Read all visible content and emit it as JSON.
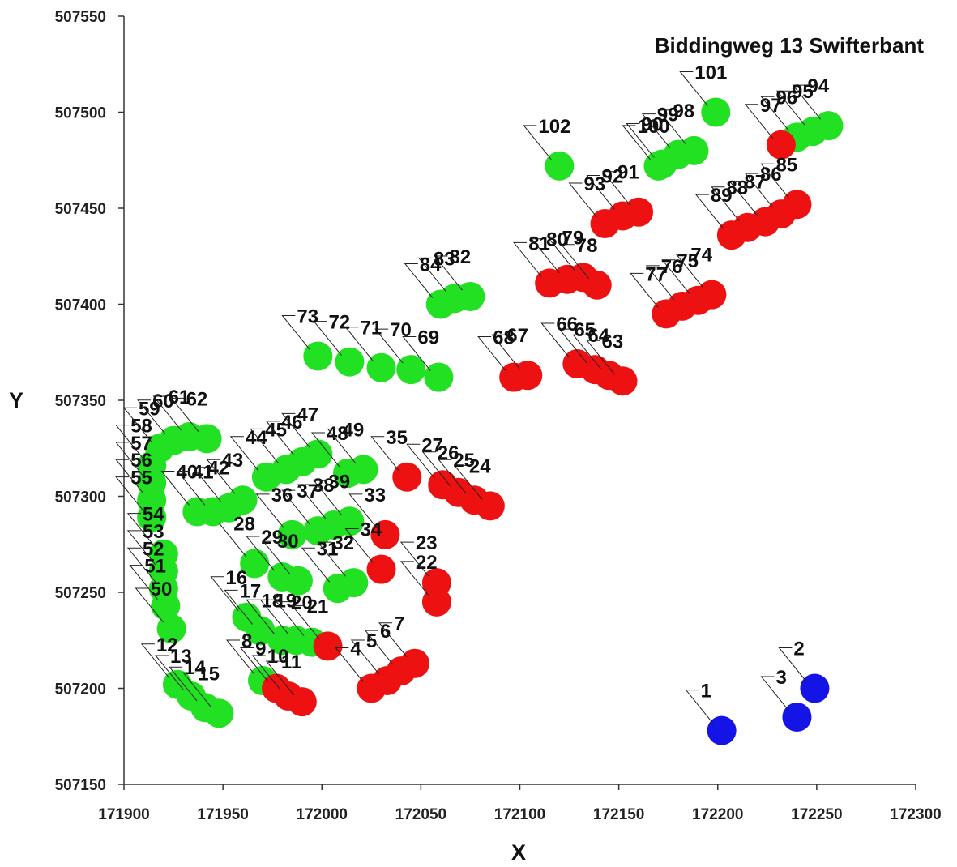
{
  "chart_data": {
    "type": "scatter",
    "title": "Biddingweg 13 Swifterbant",
    "xlabel": "X",
    "ylabel": "Y",
    "xlim": [
      171900,
      172300
    ],
    "ylim": [
      507150,
      507550
    ],
    "xticks": [
      171900,
      171950,
      172000,
      172050,
      172100,
      172150,
      172200,
      172250,
      172300
    ],
    "yticks": [
      507150,
      507200,
      507250,
      507300,
      507350,
      507400,
      507450,
      507500,
      507550
    ],
    "grid": false,
    "legend": "none",
    "colors": {
      "green": "#22e022",
      "red": "#ee1111",
      "blue": "#1414e6"
    },
    "points": [
      {
        "id": "1",
        "x": 172202,
        "y": 507178,
        "color": "blue"
      },
      {
        "id": "2",
        "x": 172249,
        "y": 507200,
        "color": "blue"
      },
      {
        "id": "3",
        "x": 172240,
        "y": 507185,
        "color": "blue"
      },
      {
        "id": "4",
        "x": 172025,
        "y": 507200,
        "color": "red"
      },
      {
        "id": "5",
        "x": 172033,
        "y": 507204,
        "color": "red"
      },
      {
        "id": "6",
        "x": 172040,
        "y": 507209,
        "color": "red"
      },
      {
        "id": "7",
        "x": 172047,
        "y": 507213,
        "color": "red"
      },
      {
        "id": "8",
        "x": 171970,
        "y": 507204,
        "color": "green"
      },
      {
        "id": "9",
        "x": 171977,
        "y": 507200,
        "color": "red"
      },
      {
        "id": "10",
        "x": 171983,
        "y": 507196,
        "color": "red"
      },
      {
        "id": "11",
        "x": 171990,
        "y": 507193,
        "color": "red"
      },
      {
        "id": "12",
        "x": 171927,
        "y": 507202,
        "color": "green"
      },
      {
        "id": "13",
        "x": 171934,
        "y": 507196,
        "color": "green"
      },
      {
        "id": "14",
        "x": 171941,
        "y": 507190,
        "color": "green"
      },
      {
        "id": "15",
        "x": 171948,
        "y": 507187,
        "color": "green"
      },
      {
        "id": "16",
        "x": 171962,
        "y": 507237,
        "color": "green"
      },
      {
        "id": "17",
        "x": 171969,
        "y": 507230,
        "color": "green"
      },
      {
        "id": "18",
        "x": 171980,
        "y": 507225,
        "color": "green"
      },
      {
        "id": "19",
        "x": 171987,
        "y": 507225,
        "color": "green"
      },
      {
        "id": "20",
        "x": 171995,
        "y": 507224,
        "color": "green"
      },
      {
        "id": "21",
        "x": 172003,
        "y": 507222,
        "color": "red"
      },
      {
        "id": "22",
        "x": 172058,
        "y": 507245,
        "color": "red"
      },
      {
        "id": "23",
        "x": 172058,
        "y": 507255,
        "color": "red"
      },
      {
        "id": "24",
        "x": 172085,
        "y": 507295,
        "color": "red"
      },
      {
        "id": "25",
        "x": 172077,
        "y": 507298,
        "color": "red"
      },
      {
        "id": "26",
        "x": 172069,
        "y": 507302,
        "color": "red"
      },
      {
        "id": "27",
        "x": 172061,
        "y": 507306,
        "color": "red"
      },
      {
        "id": "28",
        "x": 171966,
        "y": 507265,
        "color": "green"
      },
      {
        "id": "29",
        "x": 171980,
        "y": 507258,
        "color": "green"
      },
      {
        "id": "30",
        "x": 171988,
        "y": 507256,
        "color": "green"
      },
      {
        "id": "31",
        "x": 172008,
        "y": 507252,
        "color": "green"
      },
      {
        "id": "32",
        "x": 172016,
        "y": 507255,
        "color": "green"
      },
      {
        "id": "33",
        "x": 172032,
        "y": 507280,
        "color": "red"
      },
      {
        "id": "34",
        "x": 172030,
        "y": 507262,
        "color": "red"
      },
      {
        "id": "35",
        "x": 172043,
        "y": 507310,
        "color": "red"
      },
      {
        "id": "36",
        "x": 171985,
        "y": 507280,
        "color": "green"
      },
      {
        "id": "37",
        "x": 171998,
        "y": 507282,
        "color": "green"
      },
      {
        "id": "38",
        "x": 172006,
        "y": 507285,
        "color": "green"
      },
      {
        "id": "39",
        "x": 172014,
        "y": 507287,
        "color": "green"
      },
      {
        "id": "40",
        "x": 171937,
        "y": 507292,
        "color": "green"
      },
      {
        "id": "41",
        "x": 171945,
        "y": 507292,
        "color": "green"
      },
      {
        "id": "42",
        "x": 171953,
        "y": 507294,
        "color": "green"
      },
      {
        "id": "43",
        "x": 171960,
        "y": 507298,
        "color": "green"
      },
      {
        "id": "44",
        "x": 171972,
        "y": 507310,
        "color": "green"
      },
      {
        "id": "45",
        "x": 171982,
        "y": 507314,
        "color": "green"
      },
      {
        "id": "46",
        "x": 171990,
        "y": 507318,
        "color": "green"
      },
      {
        "id": "47",
        "x": 171998,
        "y": 507322,
        "color": "green"
      },
      {
        "id": "48",
        "x": 172013,
        "y": 507312,
        "color": "green"
      },
      {
        "id": "49",
        "x": 172021,
        "y": 507314,
        "color": "green"
      },
      {
        "id": "50",
        "x": 171924,
        "y": 507231,
        "color": "green"
      },
      {
        "id": "51",
        "x": 171921,
        "y": 507243,
        "color": "green"
      },
      {
        "id": "52",
        "x": 171920,
        "y": 507252,
        "color": "green"
      },
      {
        "id": "53",
        "x": 171920,
        "y": 507261,
        "color": "green"
      },
      {
        "id": "54",
        "x": 171920,
        "y": 507270,
        "color": "green"
      },
      {
        "id": "55",
        "x": 171914,
        "y": 507289,
        "color": "green"
      },
      {
        "id": "56",
        "x": 171914,
        "y": 507298,
        "color": "green"
      },
      {
        "id": "57",
        "x": 171914,
        "y": 507307,
        "color": "green"
      },
      {
        "id": "58",
        "x": 171914,
        "y": 507316,
        "color": "green"
      },
      {
        "id": "59",
        "x": 171918,
        "y": 507325,
        "color": "green"
      },
      {
        "id": "60",
        "x": 171925,
        "y": 507329,
        "color": "green"
      },
      {
        "id": "61",
        "x": 171933,
        "y": 507331,
        "color": "green"
      },
      {
        "id": "62",
        "x": 171942,
        "y": 507330,
        "color": "green"
      },
      {
        "id": "63",
        "x": 172152,
        "y": 507360,
        "color": "red"
      },
      {
        "id": "64",
        "x": 172145,
        "y": 507363,
        "color": "red"
      },
      {
        "id": "65",
        "x": 172138,
        "y": 507366,
        "color": "red"
      },
      {
        "id": "66",
        "x": 172129,
        "y": 507369,
        "color": "red"
      },
      {
        "id": "67",
        "x": 172104,
        "y": 507363,
        "color": "red"
      },
      {
        "id": "68",
        "x": 172097,
        "y": 507362,
        "color": "red"
      },
      {
        "id": "69",
        "x": 172059,
        "y": 507362,
        "color": "green"
      },
      {
        "id": "70",
        "x": 172045,
        "y": 507366,
        "color": "green"
      },
      {
        "id": "71",
        "x": 172030,
        "y": 507367,
        "color": "green"
      },
      {
        "id": "72",
        "x": 172014,
        "y": 507370,
        "color": "green"
      },
      {
        "id": "73",
        "x": 171998,
        "y": 507373,
        "color": "green"
      },
      {
        "id": "74",
        "x": 172197,
        "y": 507405,
        "color": "red"
      },
      {
        "id": "75",
        "x": 172190,
        "y": 507402,
        "color": "red"
      },
      {
        "id": "76",
        "x": 172182,
        "y": 507399,
        "color": "red"
      },
      {
        "id": "77",
        "x": 172174,
        "y": 507395,
        "color": "red"
      },
      {
        "id": "78",
        "x": 172139,
        "y": 507410,
        "color": "red"
      },
      {
        "id": "79",
        "x": 172132,
        "y": 507414,
        "color": "red"
      },
      {
        "id": "80",
        "x": 172124,
        "y": 507413,
        "color": "red"
      },
      {
        "id": "81",
        "x": 172115,
        "y": 507411,
        "color": "red"
      },
      {
        "id": "82",
        "x": 172075,
        "y": 507404,
        "color": "green"
      },
      {
        "id": "83",
        "x": 172067,
        "y": 507403,
        "color": "green"
      },
      {
        "id": "84",
        "x": 172060,
        "y": 507400,
        "color": "green"
      },
      {
        "id": "85",
        "x": 172240,
        "y": 507452,
        "color": "red"
      },
      {
        "id": "86",
        "x": 172232,
        "y": 507447,
        "color": "red"
      },
      {
        "id": "87",
        "x": 172224,
        "y": 507443,
        "color": "red"
      },
      {
        "id": "88",
        "x": 172215,
        "y": 507440,
        "color": "red"
      },
      {
        "id": "89",
        "x": 172207,
        "y": 507436,
        "color": "red"
      },
      {
        "id": "90",
        "x": 172172,
        "y": 507473,
        "color": "green"
      },
      {
        "id": "91",
        "x": 172160,
        "y": 507448,
        "color": "red"
      },
      {
        "id": "92",
        "x": 172152,
        "y": 507446,
        "color": "red"
      },
      {
        "id": "93",
        "x": 172143,
        "y": 507442,
        "color": "red"
      },
      {
        "id": "94",
        "x": 172256,
        "y": 507493,
        "color": "green"
      },
      {
        "id": "95",
        "x": 172248,
        "y": 507490,
        "color": "green"
      },
      {
        "id": "96",
        "x": 172240,
        "y": 507487,
        "color": "green"
      },
      {
        "id": "97",
        "x": 172232,
        "y": 507483,
        "color": "red"
      },
      {
        "id": "98",
        "x": 172188,
        "y": 507480,
        "color": "green"
      },
      {
        "id": "99",
        "x": 172180,
        "y": 507478,
        "color": "green"
      },
      {
        "id": "100",
        "x": 172170,
        "y": 507472,
        "color": "green"
      },
      {
        "id": "101",
        "x": 172199,
        "y": 507500,
        "color": "green"
      },
      {
        "id": "102",
        "x": 172120,
        "y": 507472,
        "color": "green"
      }
    ]
  }
}
